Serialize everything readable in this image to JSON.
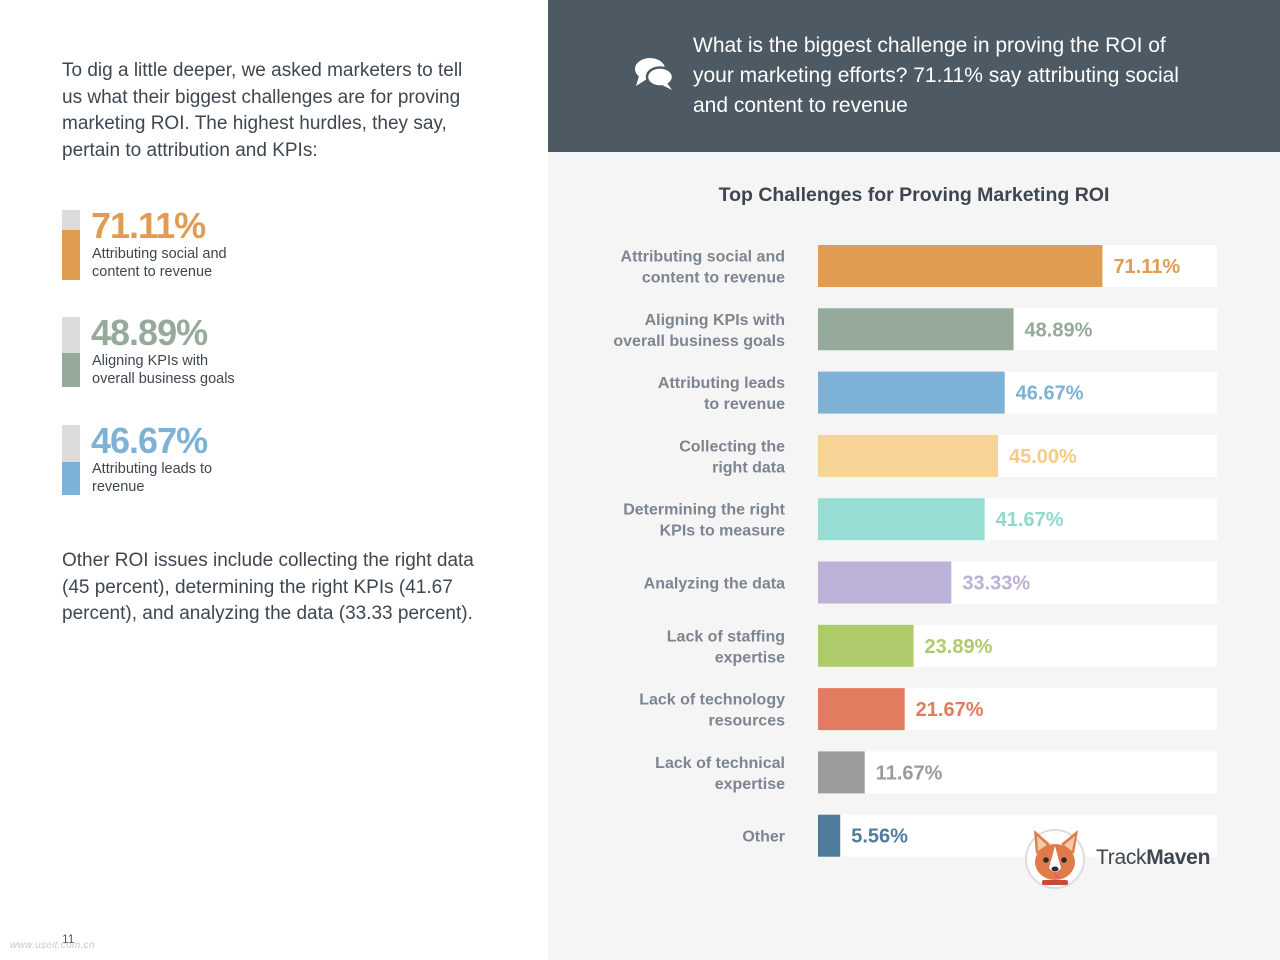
{
  "intro_text": "To dig a little deeper, we asked marketers to tell us what their biggest challenges are for proving marketing ROI. The highest hurdles, they say, pertain to attribution and KPIs:",
  "highlights": [
    {
      "value": "71.11%",
      "fraction": 0.7111,
      "label_line1": "Attributing social and",
      "label_line2": "content to revenue",
      "color": "#e09c50"
    },
    {
      "value": "48.89%",
      "fraction": 0.4889,
      "label_line1": "Aligning KPIs with",
      "label_line2": "overall business goals",
      "color": "#95aa9a"
    },
    {
      "value": "46.67%",
      "fraction": 0.4667,
      "label_line1": "Attributing leads to",
      "label_line2": "revenue",
      "color": "#7eb1d6"
    }
  ],
  "outro_text": "Other ROI issues include collecting the right data (45 percent), determining the right KPIs (41.67 percent), and analyzing the data (33.33 percent).",
  "page_number": "11",
  "watermark": "www.useit.com.cn",
  "banner": {
    "question": "What is the biggest challenge in proving the ROI of your marketing efforts? 71.11% say attributing social and content to revenue",
    "icon": "chat-bubbles-icon"
  },
  "logo": {
    "name_light": "Track",
    "name_bold": "Maven",
    "icon": "corgi-mascot-icon"
  },
  "colors": {
    "banner_bg": "#4d5a64",
    "panel_bg": "#f5f5f5",
    "text": "#3e4650"
  },
  "chart_data": {
    "type": "bar",
    "orientation": "horizontal",
    "title": "Top Challenges for Proving Marketing ROI",
    "xlim": [
      0,
      100
    ],
    "grid": false,
    "legend": "none",
    "categories": [
      [
        "Attributing social and",
        "content to revenue"
      ],
      [
        "Aligning KPIs with",
        "overall business goals"
      ],
      [
        "Attributing leads",
        "to revenue"
      ],
      [
        "Collecting the",
        "right data"
      ],
      [
        "Determining the right",
        "KPIs to measure"
      ],
      [
        "Analyzing the data"
      ],
      [
        "Lack of staffing",
        "expertise"
      ],
      [
        "Lack of technology",
        "resources"
      ],
      [
        "Lack of technical",
        "expertise"
      ],
      [
        "Other"
      ]
    ],
    "values": [
      71.11,
      48.89,
      46.67,
      45.0,
      41.67,
      33.33,
      23.89,
      21.67,
      11.67,
      5.56
    ],
    "value_labels": [
      "71.11%",
      "48.89%",
      "46.67%",
      "45.00%",
      "41.67%",
      "33.33%",
      "23.89%",
      "21.67%",
      "11.67%",
      "5.56%"
    ],
    "colors": [
      "#e09c50",
      "#95aa9a",
      "#7eb1d6",
      "#f7d495",
      "#97ddd3",
      "#bcb1d9",
      "#aecb6c",
      "#e27b60",
      "#9b9b9b",
      "#4e7c9b"
    ],
    "label_colors": [
      "#e09c50",
      "#95aa9a",
      "#7eb1d6",
      "#f5cc80",
      "#8fd9cc",
      "#bcb1d9",
      "#aecb6c",
      "#e27b60",
      "#9b9b9b",
      "#4e7c9b"
    ]
  }
}
